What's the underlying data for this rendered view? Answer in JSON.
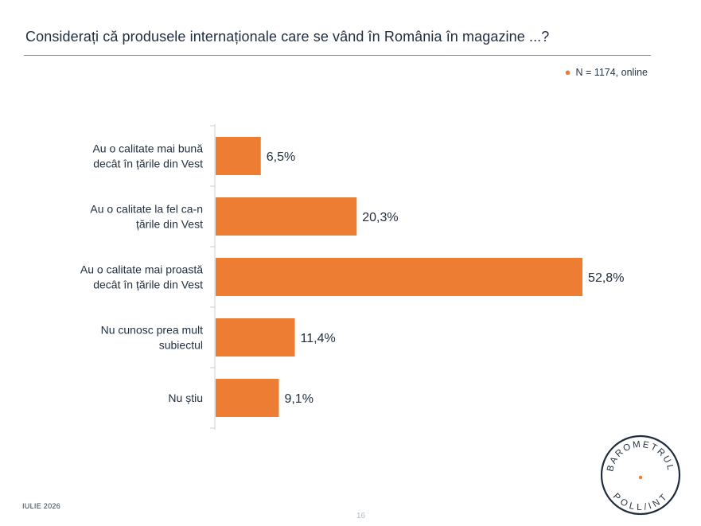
{
  "title": "Considerați că produsele internaționale care se vând în România în magazine ...?",
  "sample_note": "N = 1174, online",
  "footer": {
    "date": "IULIE 2026",
    "page": "16"
  },
  "logo": {
    "top_text": "BAROMETRUL",
    "bottom_text": "POLL/INT"
  },
  "colors": {
    "bar": "#ec7d32",
    "text": "#1f2d3d",
    "axis": "#c9ced4"
  },
  "chart_data": {
    "type": "bar",
    "orientation": "horizontal",
    "categories": [
      [
        "Au o calitate mai bună",
        "decât în țările din Vest"
      ],
      [
        "Au o calitate la fel ca-n",
        "țările din Vest"
      ],
      [
        "Au o calitate mai proastă",
        "decât în țările din Vest"
      ],
      [
        "Nu cunosc prea mult",
        "subiectul"
      ],
      [
        "Nu știu"
      ]
    ],
    "values": [
      6.5,
      20.3,
      52.8,
      11.4,
      9.1
    ],
    "value_labels": [
      "6,5%",
      "20,3%",
      "52,8%",
      "11,4%",
      "9,1%"
    ],
    "xlim": [
      0,
      56
    ],
    "grid": false,
    "legend": "none"
  }
}
